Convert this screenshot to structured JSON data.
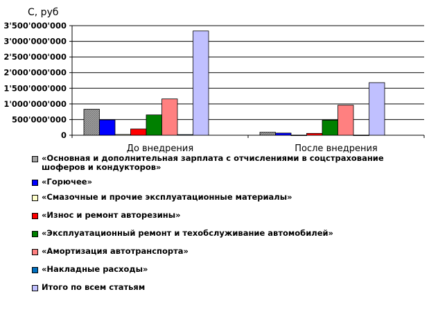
{
  "chart_data": {
    "type": "bar",
    "title": "",
    "xlabel": "",
    "ylabel": "С, руб",
    "ylim": [
      0,
      3500000000
    ],
    "yticks": [
      0,
      500000000,
      1000000000,
      1500000000,
      2000000000,
      2500000000,
      3000000000,
      3500000000
    ],
    "ytick_labels": [
      "0",
      "500'000'000",
      "1'000'000'000",
      "1'500'000'000",
      "2'000'000'000",
      "2'500'000'000",
      "3'000'000'000",
      "3'500'000'000"
    ],
    "categories": [
      "До внедрения",
      "После внедрения"
    ],
    "legend_position": "bottom",
    "grid": "horizontal",
    "series": [
      {
        "name": "«Основная и дополнительная зарплата с отчислениями в соцстрахование шоферов и кондукторов»",
        "color": "#a6a6a6",
        "values": [
          830000000,
          95000000
        ]
      },
      {
        "name": "«Горючее»",
        "color": "#0000ff",
        "values": [
          490000000,
          70000000
        ]
      },
      {
        "name": "«Смазочные и прочие эксплуатационные материалы»",
        "color": "#ffffcc",
        "values": [
          25000000,
          5000000
        ]
      },
      {
        "name": "«Износ и ремонт авторезины»",
        "color": "#ff0000",
        "values": [
          200000000,
          60000000
        ]
      },
      {
        "name": "«Эксплуатационный ремонт и техобслуживание автомобилей»",
        "color": "#008000",
        "values": [
          650000000,
          480000000
        ]
      },
      {
        "name": "«Амортизация автотранспорта»",
        "color": "#ff8080",
        "values": [
          1160000000,
          960000000
        ]
      },
      {
        "name": "«Накладные расходы»",
        "color": "#0070c0",
        "values": [
          20000000,
          5000000
        ]
      },
      {
        "name": "Итого по всем статьям",
        "color": "#c0c0ff",
        "values": [
          3330000000,
          1680000000
        ]
      }
    ]
  }
}
